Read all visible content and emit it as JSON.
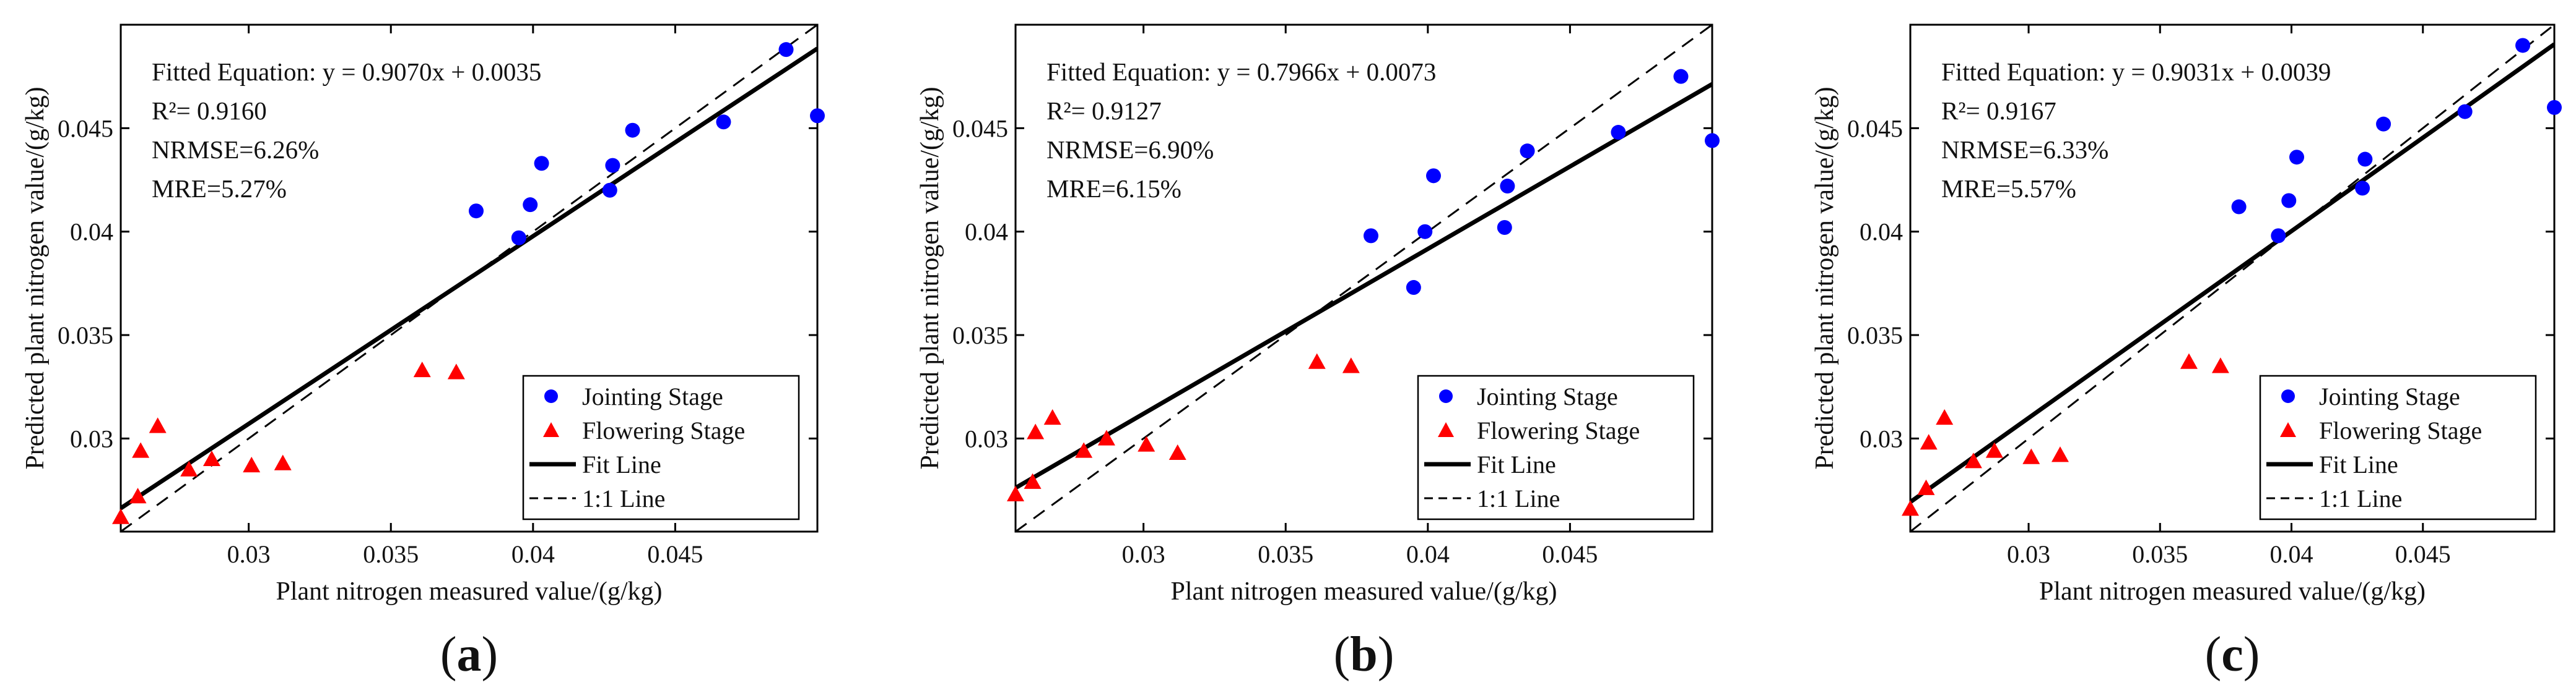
{
  "chart_data": [
    {
      "type": "scatter",
      "panel_label": "(a)",
      "xlabel": "Plant nitrogen measured value/(g/kg)",
      "ylabel": "Predicted plant nitrogen value/(g/kg)",
      "xlim": [
        0.0255,
        0.05
      ],
      "ylim": [
        0.0255,
        0.05
      ],
      "xticks": [
        0.03,
        0.035,
        0.04,
        0.045
      ],
      "xtick_labels": [
        "0.03",
        "0.035",
        "0.04",
        "0.045"
      ],
      "yticks": [
        0.03,
        0.035,
        0.04,
        0.045
      ],
      "ytick_labels": [
        "0.03",
        "0.035",
        "0.04",
        "0.045"
      ],
      "annotations": [
        "Fitted Equation: y = 0.9070x + 0.0035",
        "R²= 0.9160",
        "NRMSE=6.26%",
        "MRE=5.27%"
      ],
      "fit": {
        "slope": 0.907,
        "intercept": 0.0035
      },
      "legend": {
        "position": "bottom-right",
        "entries": [
          "Jointing Stage",
          "Flowering Stage",
          "Fit Line",
          "1:1 Line"
        ]
      },
      "series": [
        {
          "name": "Jointing Stage",
          "marker": "circle",
          "color": "#0000ff",
          "x": [
            0.038,
            0.0395,
            0.0399,
            0.0403,
            0.0427,
            0.0428,
            0.0435,
            0.0467,
            0.0489,
            0.05
          ],
          "y": [
            0.041,
            0.0397,
            0.0413,
            0.0433,
            0.042,
            0.0432,
            0.0449,
            0.0453,
            0.0488,
            0.0456
          ]
        },
        {
          "name": "Flowering Stage",
          "marker": "triangle",
          "color": "#ff0000",
          "x": [
            0.0255,
            0.0261,
            0.0262,
            0.0268,
            0.0279,
            0.0287,
            0.0301,
            0.0312,
            0.0361,
            0.0373
          ],
          "y": [
            0.0262,
            0.0272,
            0.0294,
            0.0306,
            0.0285,
            0.029,
            0.0287,
            0.0288,
            0.0333,
            0.0332
          ]
        }
      ]
    },
    {
      "type": "scatter",
      "panel_label": "(b)",
      "xlabel": "Plant nitrogen measured value/(g/kg)",
      "ylabel": "Predicted plant nitrogen value/(g/kg)",
      "xlim": [
        0.0255,
        0.05
      ],
      "ylim": [
        0.0255,
        0.05
      ],
      "xticks": [
        0.03,
        0.035,
        0.04,
        0.045
      ],
      "xtick_labels": [
        "0.03",
        "0.035",
        "0.04",
        "0.045"
      ],
      "yticks": [
        0.03,
        0.035,
        0.04,
        0.045
      ],
      "ytick_labels": [
        "0.03",
        "0.035",
        "0.04",
        "0.045"
      ],
      "annotations": [
        "Fitted Equation: y = 0.7966x + 0.0073",
        "R²= 0.9127",
        "NRMSE=6.90%",
        "MRE=6.15%"
      ],
      "fit": {
        "slope": 0.7966,
        "intercept": 0.0073
      },
      "legend": {
        "position": "bottom-right",
        "entries": [
          "Jointing Stage",
          "Flowering Stage",
          "Fit Line",
          "1:1 Line"
        ]
      },
      "series": [
        {
          "name": "Jointing Stage",
          "marker": "circle",
          "color": "#0000ff",
          "x": [
            0.038,
            0.0395,
            0.0399,
            0.0402,
            0.0427,
            0.0428,
            0.0435,
            0.0467,
            0.0489,
            0.05
          ],
          "y": [
            0.0398,
            0.0373,
            0.04,
            0.0427,
            0.0402,
            0.0422,
            0.0439,
            0.0448,
            0.0475,
            0.0444
          ]
        },
        {
          "name": "Flowering Stage",
          "marker": "triangle",
          "color": "#ff0000",
          "x": [
            0.0255,
            0.0261,
            0.0262,
            0.0268,
            0.0279,
            0.0287,
            0.0301,
            0.0312,
            0.0361,
            0.0373
          ],
          "y": [
            0.0273,
            0.0279,
            0.0303,
            0.031,
            0.0294,
            0.03,
            0.0297,
            0.0293,
            0.0337,
            0.0335
          ]
        }
      ]
    },
    {
      "type": "scatter",
      "panel_label": "(c)",
      "xlabel": "Plant nitrogen measured value/(g/kg)",
      "ylabel": "Predicted plant nitrogen value/(g/kg)",
      "xlim": [
        0.0255,
        0.05
      ],
      "ylim": [
        0.0255,
        0.05
      ],
      "xticks": [
        0.03,
        0.035,
        0.04,
        0.045
      ],
      "xtick_labels": [
        "0.03",
        "0.035",
        "0.04",
        "0.045"
      ],
      "yticks": [
        0.03,
        0.035,
        0.04,
        0.045
      ],
      "ytick_labels": [
        "0.03",
        "0.035",
        "0.04",
        "0.045"
      ],
      "annotations": [
        "Fitted Equation: y = 0.9031x + 0.0039",
        "R²= 0.9167",
        "NRMSE=6.33%",
        "MRE=5.57%"
      ],
      "fit": {
        "slope": 0.9031,
        "intercept": 0.0039
      },
      "legend": {
        "position": "bottom-right",
        "entries": [
          "Jointing Stage",
          "Flowering Stage",
          "Fit Line",
          "1:1 Line"
        ]
      },
      "series": [
        {
          "name": "Jointing Stage",
          "marker": "circle",
          "color": "#0000ff",
          "x": [
            0.038,
            0.0395,
            0.0399,
            0.0402,
            0.0427,
            0.0428,
            0.0435,
            0.0466,
            0.0488,
            0.05
          ],
          "y": [
            0.0412,
            0.0398,
            0.0415,
            0.0436,
            0.0421,
            0.0435,
            0.0452,
            0.0458,
            0.049,
            0.046
          ]
        },
        {
          "name": "Flowering Stage",
          "marker": "triangle",
          "color": "#ff0000",
          "x": [
            0.0255,
            0.0261,
            0.0262,
            0.0268,
            0.0279,
            0.0287,
            0.0301,
            0.0312,
            0.0361,
            0.0373
          ],
          "y": [
            0.0266,
            0.0276,
            0.0298,
            0.031,
            0.0289,
            0.0294,
            0.0291,
            0.0292,
            0.0337,
            0.0335
          ]
        }
      ]
    }
  ]
}
